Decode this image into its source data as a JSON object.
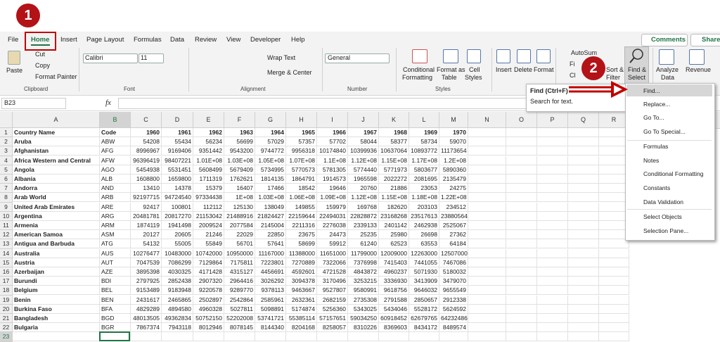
{
  "badges": [
    "1",
    "2"
  ],
  "tabs": [
    "File",
    "Home",
    "Insert",
    "Page Layout",
    "Formulas",
    "Data",
    "Review",
    "View",
    "Developer",
    "Help"
  ],
  "top_buttons": {
    "comments": "Comments",
    "share": "Share"
  },
  "ribbon_labels": [
    "Paste",
    "Cut",
    "Copy",
    "Format Painter",
    "Calibri",
    "11",
    "Wrap Text",
    "Merge & Center",
    "General",
    "Conditional",
    "Formatting",
    "Format as",
    "Table",
    "Cell",
    "Styles",
    "Insert",
    "Delete",
    "Format",
    "AutoSum",
    "Fi",
    "Cl",
    "Sort &",
    "Filter",
    "Find &",
    "Select",
    "Analyze",
    "Data",
    "Revenue"
  ],
  "ribbon_groups": [
    "Clipboard",
    "Font",
    "Alignment",
    "Number",
    "Styles"
  ],
  "formula_bar": {
    "name_box": "B23",
    "fx": "fx"
  },
  "tooltip": {
    "title": "Find (Ctrl+F)",
    "text": "Search for text."
  },
  "menu": [
    "Find...",
    "Replace...",
    "Go To...",
    "Go To Special...",
    "Formulas",
    "Notes",
    "Conditional Formatting",
    "Constants",
    "Data Validation",
    "Select Objects",
    "Selection Pane..."
  ],
  "sheet": {
    "columns": [
      "A",
      "B",
      "C",
      "D",
      "E",
      "F",
      "G",
      "H",
      "I",
      "J",
      "K",
      "L",
      "M",
      "N",
      "O",
      "P",
      "Q",
      "R"
    ],
    "rows": [
      1,
      2,
      3,
      4,
      5,
      6,
      7,
      8,
      9,
      10,
      11,
      12,
      13,
      14,
      15,
      16,
      17,
      18,
      19,
      20,
      21,
      22,
      23
    ],
    "header": [
      "Country Name",
      "Code",
      "1960",
      "1961",
      "1962",
      "1963",
      "1964",
      "1965",
      "1966",
      "1967",
      "1968",
      "1969",
      "1970"
    ],
    "data": [
      [
        "Aruba",
        "ABW",
        "54208",
        "55434",
        "56234",
        "56699",
        "57029",
        "57357",
        "57702",
        "58044",
        "58377",
        "58734",
        "59070"
      ],
      [
        "Afghanistan",
        "AFG",
        "8996967",
        "9169406",
        "9351442",
        "9543200",
        "9744772",
        "9956318",
        "10174840",
        "10399936",
        "10637064",
        "10893772",
        "11173654"
      ],
      [
        "Africa Western and Central",
        "AFW",
        "96396419",
        "98407221",
        "1.01E+08",
        "1.03E+08",
        "1.05E+08",
        "1.07E+08",
        "1.1E+08",
        "1.12E+08",
        "1.15E+08",
        "1.17E+08",
        "1.2E+08"
      ],
      [
        "Angola",
        "AGO",
        "5454938",
        "5531451",
        "5608499",
        "5679409",
        "5734995",
        "5770573",
        "5781305",
        "5774440",
        "5771973",
        "5803677",
        "5890360"
      ],
      [
        "Albania",
        "ALB",
        "1608800",
        "1659800",
        "1711319",
        "1762621",
        "1814135",
        "1864791",
        "1914573",
        "1965598",
        "2022272",
        "2081695",
        "2135479"
      ],
      [
        "Andorra",
        "AND",
        "13410",
        "14378",
        "15379",
        "16407",
        "17466",
        "18542",
        "19646",
        "20760",
        "21886",
        "23053",
        "24275"
      ],
      [
        "Arab World",
        "ARB",
        "92197715",
        "94724540",
        "97334438",
        "1E+08",
        "1.03E+08",
        "1.06E+08",
        "1.09E+08",
        "1.12E+08",
        "1.15E+08",
        "1.18E+08",
        "1.22E+08"
      ],
      [
        "United Arab Emirates",
        "ARE",
        "92417",
        "100801",
        "112112",
        "125130",
        "138049",
        "149855",
        "159979",
        "169768",
        "182620",
        "203103",
        "234512"
      ],
      [
        "Argentina",
        "ARG",
        "20481781",
        "20817270",
        "21153042",
        "21488916",
        "21824427",
        "22159644",
        "22494031",
        "22828872",
        "23168268",
        "23517613",
        "23880564"
      ],
      [
        "Armenia",
        "ARM",
        "1874119",
        "1941498",
        "2009524",
        "2077584",
        "2145004",
        "2211316",
        "2276038",
        "2339133",
        "2401142",
        "2462938",
        "2525067"
      ],
      [
        "American Samoa",
        "ASM",
        "20127",
        "20605",
        "21246",
        "22029",
        "22850",
        "23675",
        "24473",
        "25235",
        "25980",
        "26698",
        "27362"
      ],
      [
        "Antigua and Barbuda",
        "ATG",
        "54132",
        "55005",
        "55849",
        "56701",
        "57641",
        "58699",
        "59912",
        "61240",
        "62523",
        "63553",
        "64184"
      ],
      [
        "Australia",
        "AUS",
        "10276477",
        "10483000",
        "10742000",
        "10950000",
        "11167000",
        "11388000",
        "11651000",
        "11799000",
        "12009000",
        "12263000",
        "12507000"
      ],
      [
        "Austria",
        "AUT",
        "7047539",
        "7086299",
        "7129864",
        "7175811",
        "7223801",
        "7270889",
        "7322066",
        "7376998",
        "7415403",
        "7441055",
        "7467086"
      ],
      [
        "Azerbaijan",
        "AZE",
        "3895398",
        "4030325",
        "4171428",
        "4315127",
        "4456691",
        "4592601",
        "4721528",
        "4843872",
        "4960237",
        "5071930",
        "5180032"
      ],
      [
        "Burundi",
        "BDI",
        "2797925",
        "2852438",
        "2907320",
        "2964416",
        "3026292",
        "3094378",
        "3170496",
        "3253215",
        "3336930",
        "3413909",
        "3479070"
      ],
      [
        "Belgium",
        "BEL",
        "9153489",
        "9183948",
        "9220578",
        "9289770",
        "9378113",
        "9463667",
        "9527807",
        "9580991",
        "9618756",
        "9646032",
        "9655549"
      ],
      [
        "Benin",
        "BEN",
        "2431617",
        "2465865",
        "2502897",
        "2542864",
        "2585961",
        "2632361",
        "2682159",
        "2735308",
        "2791588",
        "2850657",
        "2912338"
      ],
      [
        "Burkina Faso",
        "BFA",
        "4829289",
        "4894580",
        "4960328",
        "5027811",
        "5098891",
        "5174874",
        "5256360",
        "5343025",
        "5434046",
        "5528172",
        "5624592"
      ],
      [
        "Bangladesh",
        "BGD",
        "48013505",
        "49362834",
        "50752150",
        "52202008",
        "53741721",
        "55385114",
        "57157651",
        "59034250",
        "60918452",
        "62679765",
        "64232486"
      ],
      [
        "Bulgaria",
        "BGR",
        "7867374",
        "7943118",
        "8012946",
        "8078145",
        "8144340",
        "8204168",
        "8258057",
        "8310226",
        "8369603",
        "8434172",
        "8489574"
      ]
    ]
  }
}
